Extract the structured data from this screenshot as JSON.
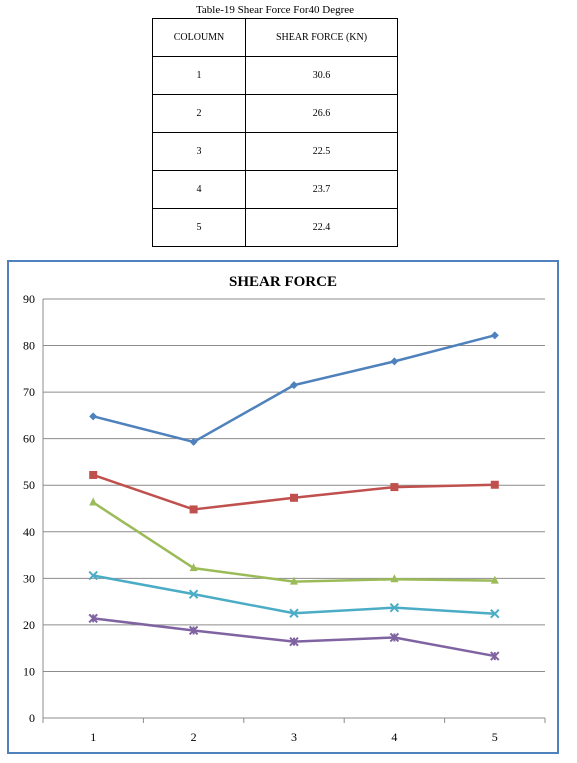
{
  "table": {
    "title": "Table-19 Shear Force For40 Degree",
    "headers": [
      "COLOUMN",
      "SHEAR FORCE (KN)"
    ],
    "rows": [
      [
        "1",
        "30.6"
      ],
      [
        "2",
        "26.6"
      ],
      [
        "3",
        "22.5"
      ],
      [
        "4",
        "23.7"
      ],
      [
        "5",
        "22.4"
      ]
    ]
  },
  "chart_data": {
    "type": "line",
    "title": "SHEAR FORCE",
    "xlabel": "",
    "ylabel": "",
    "categories": [
      "1",
      "2",
      "3",
      "4",
      "5"
    ],
    "ylim": [
      0,
      90
    ],
    "yticks": [
      0,
      10,
      20,
      30,
      40,
      50,
      60,
      70,
      80,
      90
    ],
    "grid": true,
    "legend": "none",
    "series": [
      {
        "values": [
          64.8,
          59.3,
          71.5,
          76.6,
          82.2
        ],
        "color": "#4f81bd",
        "marker": "diamond"
      },
      {
        "values": [
          52.2,
          44.8,
          47.3,
          49.6,
          50.1
        ],
        "color": "#c0504d",
        "marker": "square"
      },
      {
        "values": [
          46.3,
          32.2,
          29.3,
          29.8,
          29.5
        ],
        "color": "#9bbb59",
        "marker": "triangle"
      },
      {
        "values": [
          30.6,
          26.6,
          22.5,
          23.7,
          22.4
        ],
        "color": "#4bacc6",
        "marker": "x"
      },
      {
        "values": [
          21.4,
          18.8,
          16.4,
          17.3,
          13.3
        ],
        "color": "#8064a2",
        "marker": "star"
      }
    ]
  }
}
